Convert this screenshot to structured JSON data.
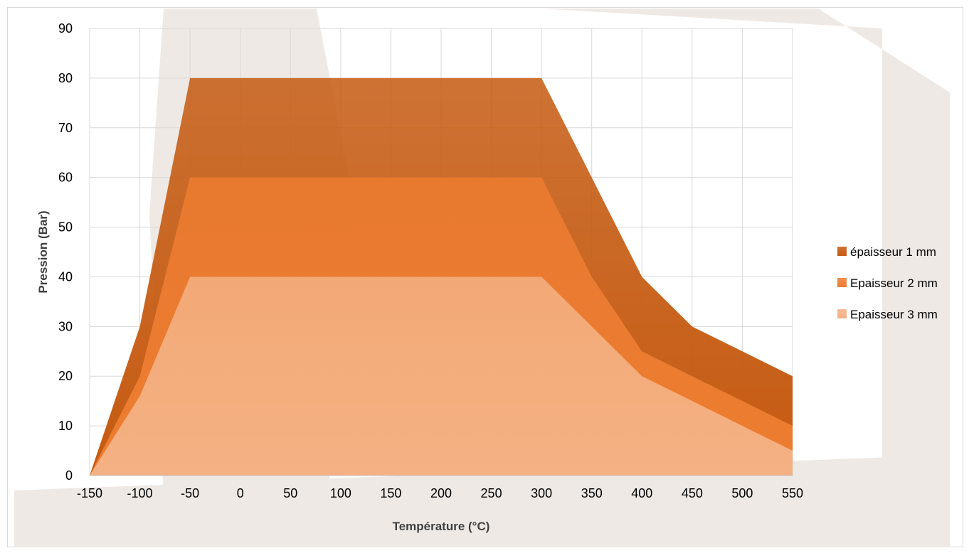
{
  "chart_data": {
    "type": "area",
    "title": "",
    "xlabel": "Température (°C)",
    "ylabel": "Pression (Bar)",
    "x": [
      -150,
      -100,
      -50,
      0,
      50,
      100,
      150,
      200,
      250,
      300,
      350,
      400,
      450,
      500,
      550
    ],
    "x_tick_labels": [
      "-150",
      "-100",
      "-50",
      "0",
      "50",
      "100",
      "150",
      "200",
      "250",
      "300",
      "350",
      "400",
      "450",
      "500",
      "550"
    ],
    "xlim": [
      -150,
      550
    ],
    "ylim": [
      0,
      90
    ],
    "y_ticks": [
      0,
      10,
      20,
      30,
      40,
      50,
      60,
      70,
      80,
      90
    ],
    "y_tick_labels": [
      "0",
      "10",
      "20",
      "30",
      "40",
      "50",
      "60",
      "70",
      "80",
      "90"
    ],
    "grid": true,
    "legend_position": "right",
    "series": [
      {
        "name": "épaisseur 1 mm",
        "color": "#c55a11",
        "values": [
          0,
          30,
          80,
          80,
          80,
          80,
          80,
          80,
          80,
          80,
          60,
          40,
          30,
          25,
          20
        ]
      },
      {
        "name": "Epaisseur 2 mm",
        "color": "#ed7d31",
        "values": [
          0,
          20,
          60,
          60,
          60,
          60,
          60,
          60,
          60,
          60,
          40,
          25,
          20,
          15,
          10
        ]
      },
      {
        "name": "Epaisseur 3 mm",
        "color": "#f4b183",
        "values": [
          0,
          16,
          40,
          40,
          40,
          40,
          40,
          40,
          40,
          40,
          30,
          20,
          15,
          10,
          5
        ]
      }
    ]
  }
}
